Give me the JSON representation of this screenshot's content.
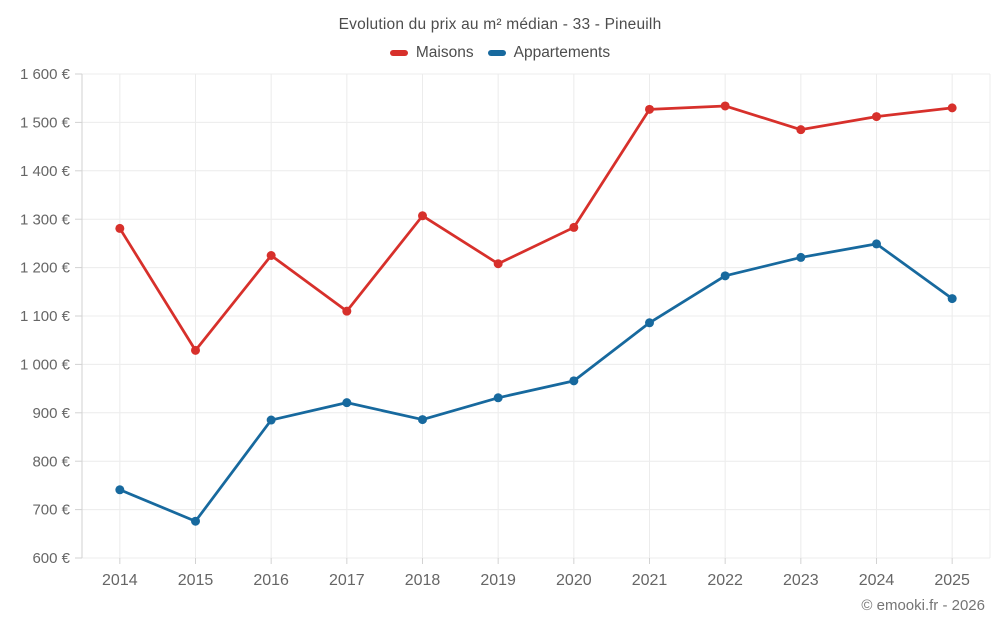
{
  "chart": {
    "title": "Evolution du prix au m² médian - 33 - Pineuilh",
    "legend": [
      "Maisons",
      "Appartements"
    ]
  },
  "footer": {
    "copyright": "© emooki.fr - 2026"
  },
  "colors": {
    "maisons": "#d7302b",
    "appartements": "#17699e",
    "grid": "#ececec",
    "axis": "#d2d2d2",
    "tick_text": "#666666",
    "title_text": "#4d4d4d"
  },
  "chart_data": {
    "type": "line",
    "title": "Evolution du prix au m² médian - 33 - Pineuilh",
    "categories": [
      "2014",
      "2015",
      "2016",
      "2017",
      "2018",
      "2019",
      "2020",
      "2021",
      "2022",
      "2023",
      "2024",
      "2025"
    ],
    "series": [
      {
        "name": "Maisons",
        "color": "#d7302b",
        "values": [
          1281,
          1029,
          1225,
          1110,
          1307,
          1208,
          1283,
          1527,
          1534,
          1485,
          1512,
          1530
        ]
      },
      {
        "name": "Appartements",
        "color": "#17699e",
        "values": [
          741,
          676,
          885,
          921,
          886,
          931,
          966,
          1086,
          1183,
          1221,
          1249,
          1136
        ]
      }
    ],
    "xlabel": "",
    "ylabel": "",
    "ylim": [
      600,
      1600
    ],
    "y_step": 100,
    "y_tick_labels": [
      "600 €",
      "700 €",
      "800 €",
      "900 €",
      "1 000 €",
      "1 100 €",
      "1 200 €",
      "1 300 €",
      "1 400 €",
      "1 500 €",
      "1 600 €"
    ],
    "grid": true,
    "legend_position": "top"
  }
}
